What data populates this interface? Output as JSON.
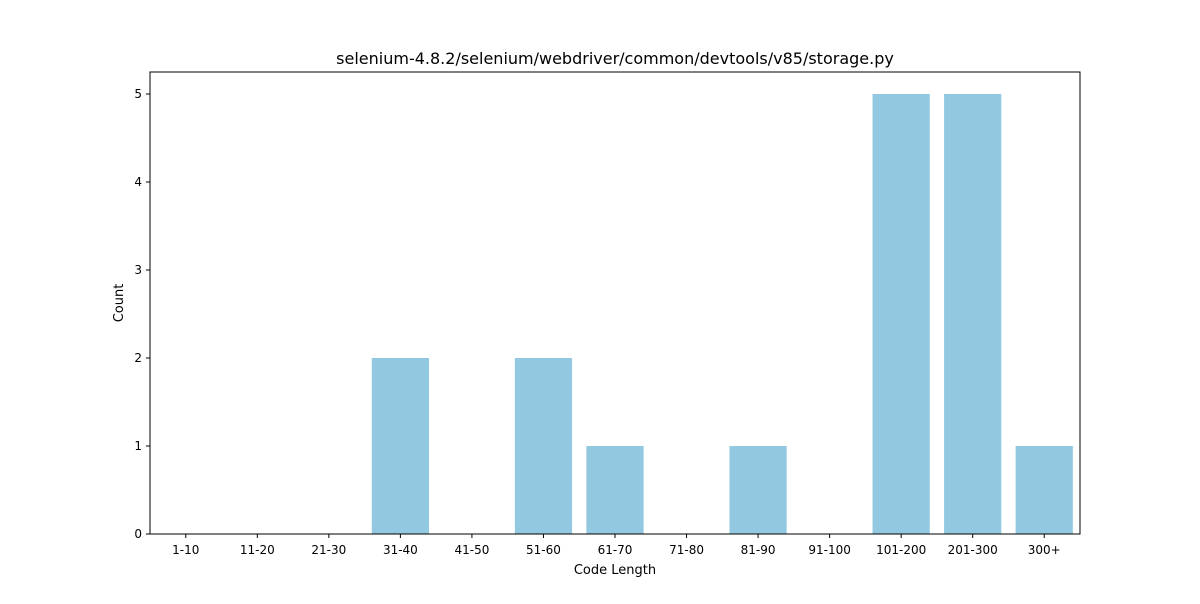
{
  "chart_data": {
    "type": "bar",
    "title": "selenium-4.8.2/selenium/webdriver/common/devtools/v85/storage.py",
    "xlabel": "Code Length",
    "ylabel": "Count",
    "categories": [
      "1-10",
      "11-20",
      "21-30",
      "31-40",
      "41-50",
      "51-60",
      "61-70",
      "71-80",
      "81-90",
      "91-100",
      "101-200",
      "201-300",
      "300+"
    ],
    "values": [
      0,
      0,
      0,
      2,
      0,
      2,
      1,
      0,
      1,
      0,
      5,
      5,
      1
    ],
    "ylim": [
      0,
      5.25
    ],
    "yticks": [
      "0",
      "1",
      "2",
      "3",
      "4",
      "5"
    ],
    "bar_color": "#92c9e0",
    "grid": false,
    "legend": "none"
  }
}
